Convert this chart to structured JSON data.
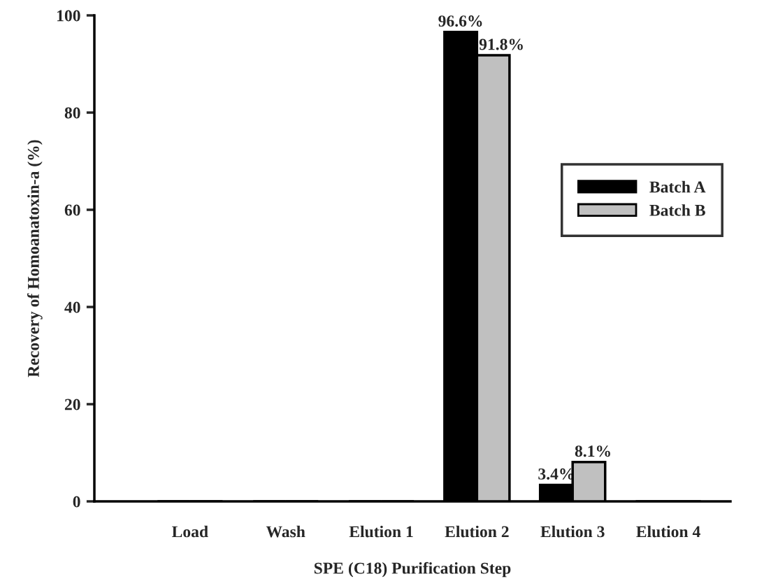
{
  "chart_data": {
    "type": "bar",
    "xlabel": "SPE (C18) Purification Step",
    "ylabel": "Recovery of Homoanatoxin-a (%)",
    "categories": [
      "Load",
      "Wash",
      "Elution 1",
      "Elution 2",
      "Elution 3",
      "Elution 4"
    ],
    "series": [
      {
        "name": "Batch A",
        "color": "#000000",
        "values": [
          0,
          0,
          0,
          96.6,
          3.4,
          0
        ],
        "value_labels": [
          null,
          null,
          null,
          "96.6%",
          "3.4%",
          null
        ]
      },
      {
        "name": "Batch B",
        "color": "#c0c0c0",
        "values": [
          0,
          0,
          0,
          91.8,
          8.1,
          0
        ],
        "value_labels": [
          null,
          null,
          null,
          "91.8%",
          "8.1%",
          null
        ]
      }
    ],
    "ylim": [
      0,
      100
    ],
    "yticks": [
      0,
      20,
      40,
      60,
      80,
      100
    ],
    "grid": false,
    "legend": "right"
  }
}
